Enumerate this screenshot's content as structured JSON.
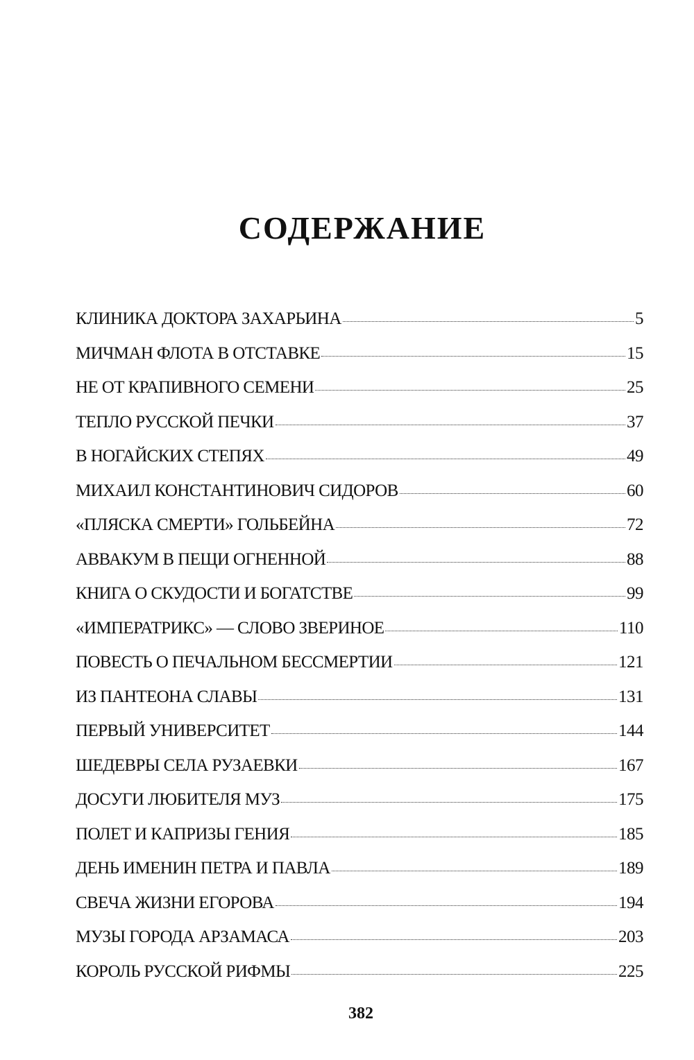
{
  "title": "СОДЕРЖАНИЕ",
  "entries": [
    {
      "label": "КЛИНИКА ДОКТОРА ЗАХАРЬИНА",
      "page": "5"
    },
    {
      "label": "МИЧМАН ФЛОТА В ОТСТАВКЕ",
      "page": "15"
    },
    {
      "label": "НЕ ОТ КРАПИВНОГО СЕМЕНИ",
      "page": "25"
    },
    {
      "label": "ТЕПЛО РУССКОЙ ПЕЧКИ",
      "page": "37"
    },
    {
      "label": "В НОГАЙСКИХ СТЕПЯХ",
      "page": "49"
    },
    {
      "label": "МИХАИЛ КОНСТАНТИНОВИЧ СИДОРОВ",
      "page": "60"
    },
    {
      "label": "«ПЛЯСКА СМЕРТИ» ГОЛЬБЕЙНА",
      "page": "72"
    },
    {
      "label": "АВВАКУМ В ПЕЩИ ОГНЕННОЙ",
      "page": "88"
    },
    {
      "label": "КНИГА О СКУДОСТИ И БОГАТСТВЕ",
      "page": "99"
    },
    {
      "label": "«ИМПЕРАТРИКС» — СЛОВО ЗВЕРИНОЕ",
      "page": "110"
    },
    {
      "label": "ПОВЕСТЬ О ПЕЧАЛЬНОМ БЕССМЕРТИИ",
      "page": "121"
    },
    {
      "label": "ИЗ ПАНТЕОНА СЛАВЫ",
      "page": "131"
    },
    {
      "label": "ПЕРВЫЙ УНИВЕРСИТЕТ",
      "page": "144"
    },
    {
      "label": "ШЕДЕВРЫ СЕЛА РУЗАЕВКИ",
      "page": "167"
    },
    {
      "label": "ДОСУГИ ЛЮБИТЕЛЯ МУЗ",
      "page": "175"
    },
    {
      "label": "ПОЛЕТ И КАПРИЗЫ ГЕНИЯ",
      "page": "185"
    },
    {
      "label": "ДЕНЬ ИМЕНИН ПЕТРА И ПАВЛА",
      "page": "189"
    },
    {
      "label": "СВЕЧА ЖИЗНИ ЕГОРОВА",
      "page": "194"
    },
    {
      "label": "МУЗЫ ГОРОДА АРЗАМАСА",
      "page": "203"
    },
    {
      "label": "КОРОЛЬ РУССКОЙ РИФМЫ",
      "page": "225"
    }
  ],
  "page_number": "382"
}
